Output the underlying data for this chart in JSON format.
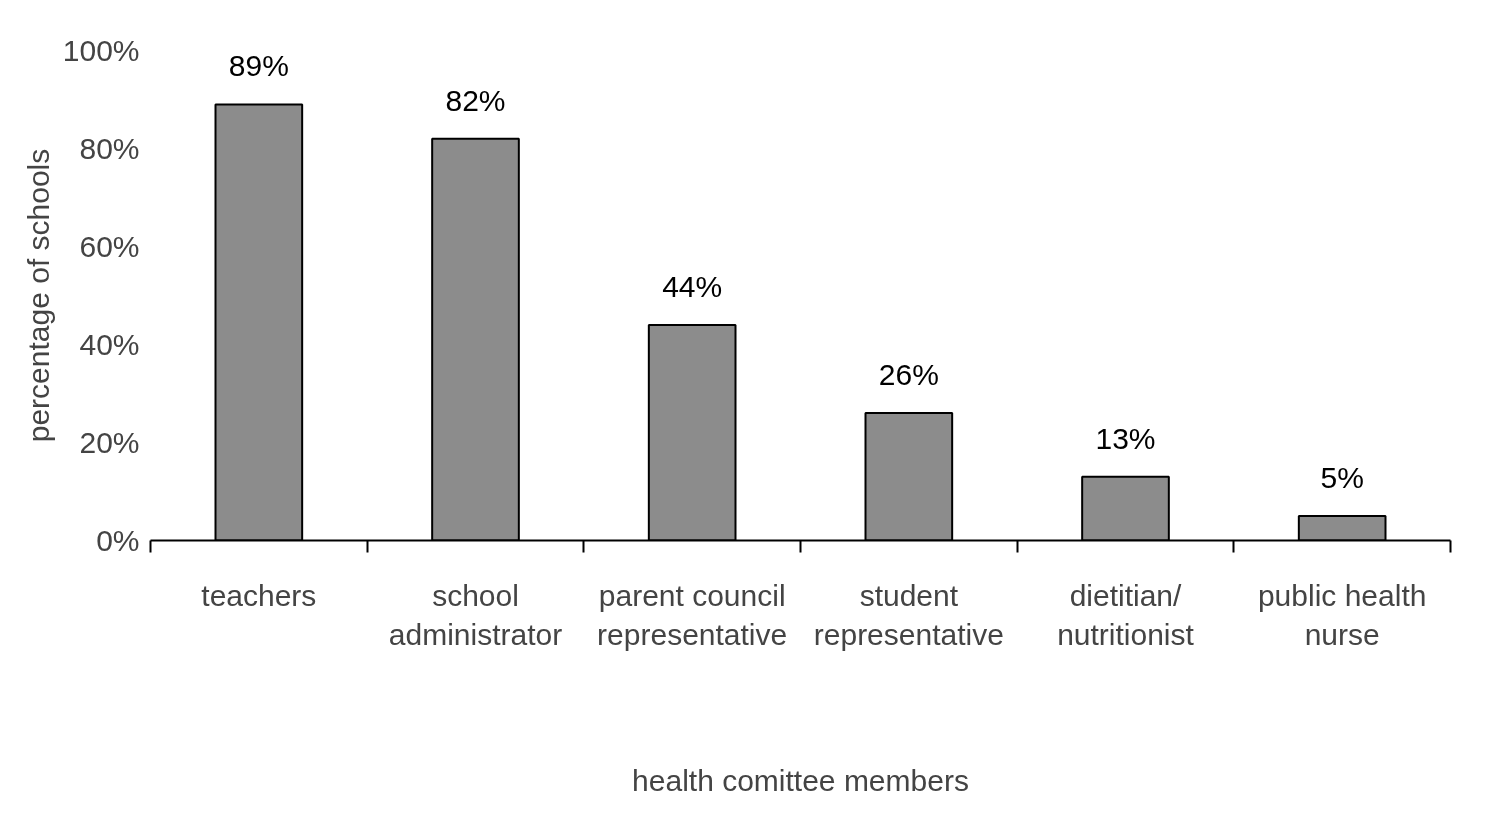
{
  "chart_data": {
    "type": "bar",
    "categories": [
      "teachers",
      "school\nadministrator",
      "parent council\nrepresentative",
      "student\nrepresentative",
      "dietitian/\nnutritionist",
      "public health\nnurse"
    ],
    "values": [
      89,
      82,
      44,
      26,
      13,
      5
    ],
    "value_labels": [
      "89%",
      "82%",
      "44%",
      "26%",
      "13%",
      "5%"
    ],
    "color": "#8c8c8c",
    "ylim": [
      0,
      100
    ],
    "yticks": [
      {
        "value": 0,
        "label": "0%"
      },
      {
        "value": 20,
        "label": "20%"
      },
      {
        "value": 40,
        "label": "40%"
      },
      {
        "value": 60,
        "label": "60%"
      },
      {
        "value": 80,
        "label": "80%"
      },
      {
        "value": 100,
        "label": "100%"
      }
    ],
    "xlabel": "health comittee members",
    "ylabel": "percentage of schools",
    "grid": false
  }
}
